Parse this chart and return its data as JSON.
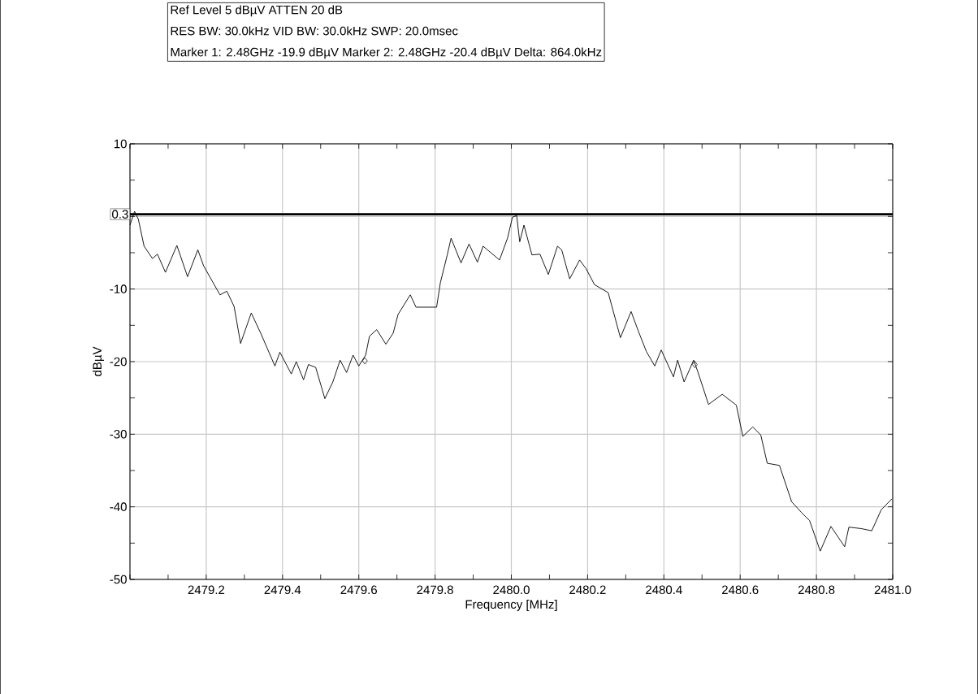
{
  "chart_data": {
    "type": "line",
    "annotations": [
      "Ref Level 5 dBµV    ATTEN 20 dB",
      "RES BW: 30.0kHz  VID BW: 30.0kHz  SWP: 20.0msec",
      "Marker 1: 2.48GHz  -19.9 dBµV    Marker 2: 2.48GHz  -20.4 dBµV Delta: 864.0kHz"
    ],
    "xlabel": "Frequency [MHz]",
    "ylabel": "dBµV",
    "xlim": [
      2479.0,
      2481.0
    ],
    "ylim": [
      -50,
      10
    ],
    "xticks": [
      {
        "value": 2479.0,
        "label": null
      },
      2479.2,
      2479.4,
      2479.6,
      2479.8,
      {
        "value": 2480.0,
        "label": "2480.0"
      },
      2480.2,
      2480.4,
      2480.6,
      2480.8,
      {
        "value": 2481.0,
        "label": "2481.0"
      }
    ],
    "yticks": [
      10,
      {
        "value": 0,
        "label": null
      },
      -10,
      -20,
      -30,
      -40,
      -50
    ],
    "grid": true,
    "ref_lines": [
      {
        "axis": "y",
        "value": 0.3,
        "label": "0.3",
        "color": "#000000"
      }
    ],
    "series": [
      {
        "color": "#000000",
        "x": [
          2479.0,
          2479.012,
          2479.022,
          2479.037,
          2479.059,
          2479.072,
          2479.093,
          2479.123,
          2479.151,
          2479.178,
          2479.193,
          2479.236,
          2479.254,
          2479.273,
          2479.29,
          2479.318,
          2479.343,
          2479.38,
          2479.393,
          2479.423,
          2479.436,
          2479.455,
          2479.468,
          2479.487,
          2479.511,
          2479.532,
          2479.551,
          2479.568,
          2479.585,
          2479.6,
          2479.618,
          2479.628,
          2479.647,
          2479.671,
          2479.69,
          2479.703,
          2479.735,
          2479.75,
          2479.804,
          2479.814,
          2479.832,
          2479.842,
          2479.868,
          2479.889,
          2479.911,
          2479.926,
          2479.969,
          2479.99,
          2480.003,
          2480.014,
          2480.022,
          2480.033,
          2480.054,
          2480.075,
          2480.097,
          2480.121,
          2480.132,
          2480.153,
          2480.179,
          2480.196,
          2480.218,
          2480.254,
          2480.286,
          2480.314,
          2480.333,
          2480.354,
          2480.376,
          2480.393,
          2480.425,
          2480.436,
          2480.453,
          2480.478,
          2480.489,
          2480.517,
          2480.553,
          2480.59,
          2480.607,
          2480.633,
          2480.654,
          2480.671,
          2480.703,
          2480.735,
          2480.761,
          2480.782,
          2480.81,
          2480.838,
          2480.874,
          2480.885,
          2480.917,
          2480.945,
          2480.97,
          2480.998
        ],
        "values": [
          -1.2,
          0.7,
          -0.4,
          -4.1,
          -5.8,
          -5.2,
          -7.7,
          -4.0,
          -8.3,
          -4.6,
          -6.8,
          -10.8,
          -10.3,
          -12.4,
          -17.5,
          -13.3,
          -16.1,
          -20.6,
          -18.7,
          -21.7,
          -20.0,
          -22.5,
          -20.4,
          -20.8,
          -25.1,
          -22.8,
          -19.8,
          -21.5,
          -19.1,
          -20.6,
          -19.1,
          -16.5,
          -15.6,
          -17.6,
          -16.1,
          -13.5,
          -10.8,
          -12.5,
          -12.5,
          -9.1,
          -5.3,
          -3.0,
          -6.4,
          -3.8,
          -6.3,
          -4.1,
          -6.0,
          -3.0,
          -0.1,
          0.1,
          -3.5,
          -1.2,
          -5.3,
          -5.2,
          -8.0,
          -4.1,
          -4.6,
          -8.6,
          -6.0,
          -7.2,
          -9.4,
          -10.5,
          -16.7,
          -13.1,
          -15.8,
          -18.6,
          -20.6,
          -18.4,
          -22.1,
          -19.8,
          -22.8,
          -19.8,
          -21.4,
          -25.9,
          -24.5,
          -26.0,
          -30.3,
          -29.0,
          -30.1,
          -34.0,
          -34.3,
          -39.3,
          -40.8,
          -41.9,
          -46.1,
          -42.7,
          -45.5,
          -42.8,
          -43.0,
          -43.3,
          -40.4,
          -38.9
        ]
      },
      {
        "type": "scatter",
        "marker": "diamond",
        "color": "#000000",
        "x": [
          2479.616,
          2480.481
        ],
        "values": [
          -19.9,
          -20.4
        ]
      }
    ]
  }
}
